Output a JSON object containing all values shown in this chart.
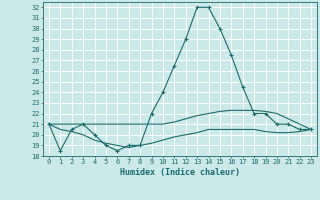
{
  "title": "",
  "xlabel": "Humidex (Indice chaleur)",
  "ylabel": "",
  "xlim": [
    -0.5,
    23.5
  ],
  "ylim": [
    18,
    32.5
  ],
  "yticks": [
    18,
    19,
    20,
    21,
    22,
    23,
    24,
    25,
    26,
    27,
    28,
    29,
    30,
    31,
    32
  ],
  "xticks": [
    0,
    1,
    2,
    3,
    4,
    5,
    6,
    7,
    8,
    9,
    10,
    11,
    12,
    13,
    14,
    15,
    16,
    17,
    18,
    19,
    20,
    21,
    22,
    23
  ],
  "background_color": "#cce9e9",
  "grid_color": "#ffffff",
  "line_color": "#1a6b6b",
  "series_main": {
    "x": [
      0,
      1,
      2,
      3,
      4,
      5,
      6,
      7,
      8,
      9,
      10,
      11,
      12,
      13,
      14,
      15,
      16,
      17,
      18,
      19,
      20,
      21,
      22,
      23
    ],
    "y": [
      21,
      18.5,
      20.5,
      21,
      20,
      19,
      18.5,
      19,
      19,
      22,
      24,
      26.5,
      29,
      32,
      32,
      30,
      27.5,
      24.5,
      22,
      22,
      21,
      21,
      20.5,
      20.5
    ]
  },
  "series_flat1": {
    "x": [
      0,
      1,
      2,
      3,
      4,
      5,
      6,
      7,
      8,
      9,
      10,
      11,
      12,
      13,
      14,
      15,
      16,
      17,
      18,
      19,
      20,
      21,
      22,
      23
    ],
    "y": [
      21,
      21,
      21,
      21,
      21,
      21,
      21,
      21,
      21,
      21,
      21,
      21.2,
      21.5,
      21.8,
      22,
      22.2,
      22.3,
      22.3,
      22.3,
      22.2,
      22,
      21.5,
      21,
      20.5
    ]
  },
  "series_flat2": {
    "x": [
      0,
      1,
      2,
      3,
      4,
      5,
      6,
      7,
      8,
      9,
      10,
      11,
      12,
      13,
      14,
      15,
      16,
      17,
      18,
      19,
      20,
      21,
      22,
      23
    ],
    "y": [
      21,
      20.5,
      20.3,
      20,
      19.5,
      19.2,
      19,
      18.8,
      19,
      19.2,
      19.5,
      19.8,
      20,
      20.2,
      20.5,
      20.5,
      20.5,
      20.5,
      20.5,
      20.3,
      20.2,
      20.2,
      20.3,
      20.5
    ]
  }
}
